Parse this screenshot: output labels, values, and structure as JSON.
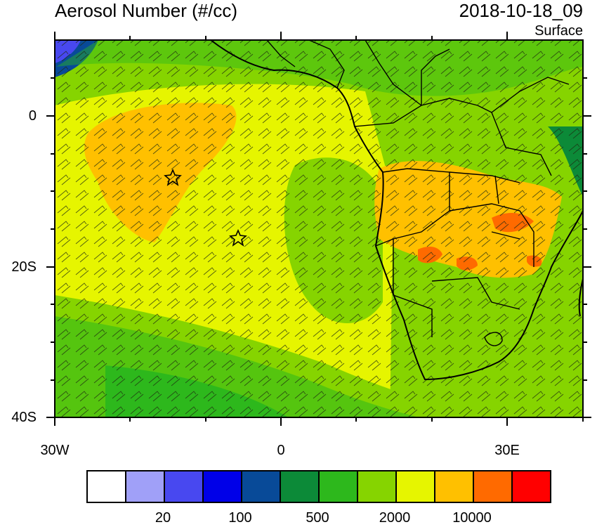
{
  "header": {
    "title": "Aerosol Number (#/cc)",
    "datetime": "2018-10-18_09",
    "level": "Surface"
  },
  "axes": {
    "lat_labels": [
      "0",
      "20S",
      "40S"
    ],
    "lon_labels": [
      "30W",
      "0",
      "30E"
    ]
  },
  "colorbar": {
    "colors": [
      "#ffffff",
      "#a0a0f8",
      "#4848f0",
      "#0000e8",
      "#084a98",
      "#0c8a38",
      "#2db81c",
      "#86d400",
      "#e6f500",
      "#ffc000",
      "#ff6a00",
      "#ff0000"
    ],
    "labels": [
      "20",
      "100",
      "500",
      "2000",
      "10000"
    ]
  },
  "map": {
    "markers": [
      "star",
      "star"
    ],
    "features": [
      "coastlines",
      "country-borders",
      "wind-barbs"
    ]
  }
}
